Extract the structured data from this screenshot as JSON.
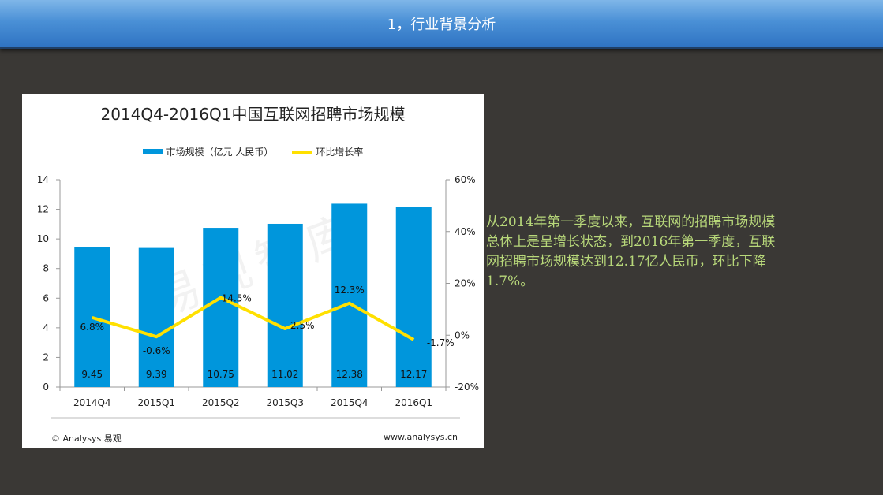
{
  "header": {
    "title": "1，行业背景分析"
  },
  "description": "从2014年第一季度以来，互联网的招聘市场规模总体上是呈增长状态，到2016年第一季度，互联网招聘市场规模达到12.17亿人民币，环比下降1.7%。",
  "colors": {
    "bar": "#0096dc",
    "line": "#ffe000",
    "background": "#3a3835",
    "description_text": "#b8d87a"
  },
  "chart_data": {
    "type": "bar",
    "title": "2014Q4-2016Q1中国互联网招聘市场规模",
    "categories": [
      "2014Q4",
      "2015Q1",
      "2015Q2",
      "2015Q3",
      "2015Q4",
      "2016Q1"
    ],
    "series": [
      {
        "name": "市场规模（亿元 人民币）",
        "type": "bar",
        "axis": "left",
        "values": [
          9.45,
          9.39,
          10.75,
          11.02,
          12.38,
          12.17
        ],
        "labels": [
          "9.45",
          "9.39",
          "10.75",
          "11.02",
          "12.38",
          "12.17"
        ]
      },
      {
        "name": "环比增长率",
        "type": "line",
        "axis": "right",
        "values": [
          6.8,
          -0.6,
          14.5,
          2.5,
          12.3,
          -1.7
        ],
        "labels": [
          "6.8%",
          "-0.6%",
          "14.5%",
          "2.5%",
          "12.3%",
          "-1.7%"
        ]
      }
    ],
    "y_left": {
      "min": 0,
      "max": 14,
      "ticks": [
        "0",
        "2",
        "4",
        "6",
        "8",
        "10",
        "12",
        "14"
      ]
    },
    "y_right": {
      "min": -20,
      "max": 60,
      "ticks": [
        "-20%",
        "0%",
        "20%",
        "40%",
        "60%"
      ]
    },
    "legend": "top",
    "grid": false,
    "watermark": "易观智库",
    "source_left": "© Analysys 易观",
    "source_right": "www.analysys.cn"
  }
}
